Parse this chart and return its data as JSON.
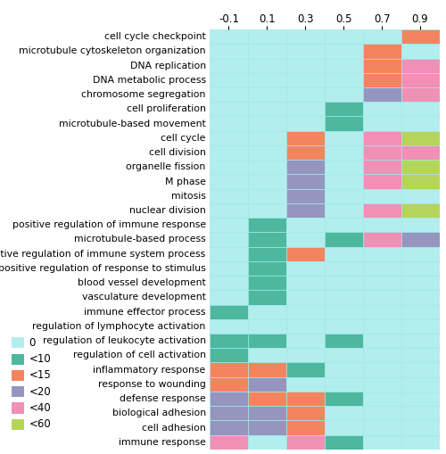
{
  "rows": [
    "cell cycle checkpoint",
    "microtubule cytoskeleton organization",
    "DNA replication",
    "DNA metabolic process",
    "chromosome segregation",
    "cell proliferation",
    "microtubule-based movement",
    "cell cycle",
    "cell division",
    "organelle fission",
    "M phase",
    "mitosis",
    "nuclear division",
    "positive regulation of immune response",
    "microtubule-based process",
    "positive regulation of immune system process",
    "positive regulation of response to stimulus",
    "blood vessel development",
    "vasculature development",
    "immune effector process",
    "regulation of lymphocyte activation",
    "regulation of leukocyte activation",
    "regulation of cell activation",
    "inflammatory response",
    "response to wounding",
    "defense response",
    "biological adhesion",
    "cell adhesion",
    "immune response"
  ],
  "cols": [
    "-0.1",
    "0.1",
    "0.3",
    "0.5",
    "0.7",
    "0.9"
  ],
  "grid": [
    [
      0,
      0,
      0,
      0,
      0,
      15
    ],
    [
      0,
      0,
      0,
      0,
      15,
      0
    ],
    [
      0,
      0,
      0,
      0,
      15,
      40
    ],
    [
      0,
      0,
      0,
      0,
      15,
      40
    ],
    [
      0,
      0,
      0,
      0,
      20,
      40
    ],
    [
      0,
      0,
      0,
      10,
      0,
      0
    ],
    [
      0,
      0,
      0,
      10,
      0,
      0
    ],
    [
      0,
      0,
      15,
      0,
      40,
      60
    ],
    [
      0,
      0,
      15,
      0,
      40,
      40
    ],
    [
      0,
      0,
      20,
      0,
      40,
      60
    ],
    [
      0,
      0,
      20,
      0,
      40,
      60
    ],
    [
      0,
      0,
      20,
      0,
      0,
      0
    ],
    [
      0,
      0,
      20,
      0,
      40,
      60
    ],
    [
      0,
      10,
      0,
      0,
      0,
      0
    ],
    [
      0,
      10,
      0,
      10,
      40,
      20
    ],
    [
      0,
      10,
      15,
      0,
      0,
      0
    ],
    [
      0,
      10,
      0,
      0,
      0,
      0
    ],
    [
      0,
      10,
      0,
      0,
      0,
      0
    ],
    [
      0,
      10,
      0,
      0,
      0,
      0
    ],
    [
      10,
      0,
      0,
      0,
      0,
      0
    ],
    [
      0,
      0,
      0,
      0,
      0,
      0
    ],
    [
      10,
      10,
      0,
      10,
      0,
      0
    ],
    [
      10,
      0,
      0,
      0,
      0,
      0
    ],
    [
      15,
      15,
      10,
      0,
      0,
      0
    ],
    [
      15,
      20,
      0,
      0,
      0,
      0
    ],
    [
      20,
      15,
      15,
      10,
      0,
      0
    ],
    [
      20,
      20,
      15,
      0,
      0,
      0
    ],
    [
      20,
      20,
      15,
      0,
      0,
      0
    ],
    [
      40,
      0,
      40,
      10,
      0,
      0
    ]
  ],
  "color_map": {
    "0": "#b2eeee",
    "10": "#4db89e",
    "15": "#f4845f",
    "20": "#9595c0",
    "40": "#f090b5",
    "60": "#b5d45a"
  },
  "legend_items": [
    {
      "label": "0",
      "color": "#b2eeee"
    },
    {
      "label": "<10",
      "color": "#4db89e"
    },
    {
      "label": "<15",
      "color": "#f4845f"
    },
    {
      "label": "<20",
      "color": "#9595c0"
    },
    {
      "label": "<40",
      "color": "#f090b5"
    },
    {
      "label": "<60",
      "color": "#b5d45a"
    }
  ],
  "grid_line_color": "#a0e8e8",
  "x_tick_labels": [
    "-0.1",
    "0.1",
    "0.3",
    "0.5",
    "0.7",
    "0.9"
  ],
  "tick_fontsize": 8.5,
  "label_fontsize": 7.8
}
